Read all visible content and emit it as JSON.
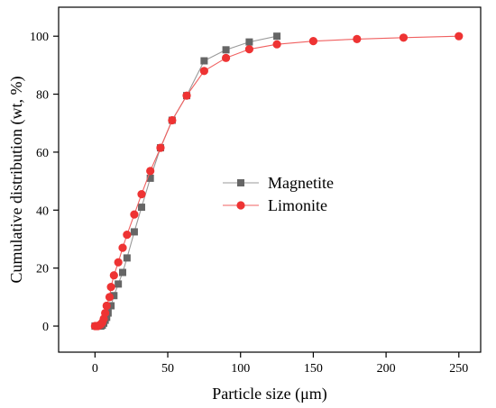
{
  "chart_data": {
    "type": "line",
    "xlabel": "Particle size (μm)",
    "ylabel": "Cumulative distribution (wt, %)",
    "xlim": [
      -25,
      265
    ],
    "ylim": [
      -9,
      110
    ],
    "x_ticks": [
      0,
      50,
      100,
      150,
      200,
      250
    ],
    "y_ticks": [
      0,
      20,
      40,
      60,
      80,
      100
    ],
    "grid": false,
    "legend_position": "center",
    "series": [
      {
        "name": "Magnetite",
        "marker": "square",
        "color": "#666666",
        "line_color": "#999999",
        "points": [
          [
            0,
            0
          ],
          [
            1,
            0
          ],
          [
            2,
            0
          ],
          [
            3,
            0
          ],
          [
            4,
            0
          ],
          [
            5,
            0.3
          ],
          [
            6,
            1
          ],
          [
            7,
            2
          ],
          [
            8,
            3
          ],
          [
            9,
            4.5
          ],
          [
            11,
            7
          ],
          [
            13,
            10.5
          ],
          [
            16,
            14.5
          ],
          [
            19,
            18.5
          ],
          [
            22,
            23.5
          ],
          [
            27,
            32.5
          ],
          [
            32,
            41
          ],
          [
            38,
            51
          ],
          [
            45,
            61.5
          ],
          [
            53,
            71
          ],
          [
            63,
            79.5
          ],
          [
            75,
            91.5
          ],
          [
            90,
            95.3
          ],
          [
            106,
            98
          ],
          [
            125,
            100
          ]
        ]
      },
      {
        "name": "Limonite",
        "marker": "circle",
        "color": "#ee3333",
        "line_color": "#f06060",
        "points": [
          [
            0,
            0
          ],
          [
            1,
            0
          ],
          [
            2,
            0
          ],
          [
            3,
            0.3
          ],
          [
            4,
            0.6
          ],
          [
            5,
            1.2
          ],
          [
            6,
            2.5
          ],
          [
            7,
            4.5
          ],
          [
            8,
            7
          ],
          [
            10,
            10
          ],
          [
            11,
            13.5
          ],
          [
            13,
            17.5
          ],
          [
            16,
            22
          ],
          [
            19,
            27
          ],
          [
            22,
            31.5
          ],
          [
            27,
            38.5
          ],
          [
            32,
            45.5
          ],
          [
            38,
            53.5
          ],
          [
            45,
            61.5
          ],
          [
            53,
            71
          ],
          [
            63,
            79.5
          ],
          [
            75,
            88
          ],
          [
            90,
            92.5
          ],
          [
            106,
            95.5
          ],
          [
            125,
            97.2
          ],
          [
            150,
            98.3
          ],
          [
            180,
            99
          ],
          [
            212,
            99.5
          ],
          [
            250,
            100
          ]
        ]
      }
    ]
  }
}
